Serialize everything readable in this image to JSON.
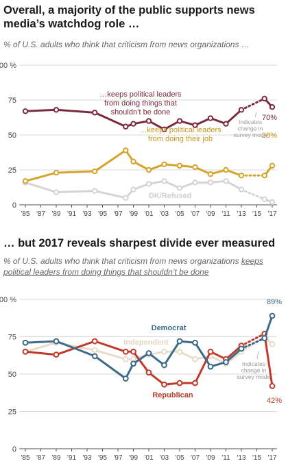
{
  "chart_data": [
    {
      "type": "line",
      "title": "Overall, a majority of the public supports news media’s watchdog role …",
      "subtitle": "% of U.S. adults who think that criticism from news organizations …",
      "ylim": [
        0,
        100
      ],
      "y_ticks": [
        "0",
        "25",
        "50",
        "75",
        "100 %"
      ],
      "x_ticks": [
        "'85",
        "'87",
        "'89",
        "'91",
        "'93",
        "'95",
        "'97",
        "'99",
        "'01",
        "'03",
        "'05",
        "'07",
        "'09",
        "'11",
        "'13",
        "'15",
        "'17"
      ],
      "mode_change_note": "Indicates change in survey mode",
      "series": [
        {
          "name": "…keeps political leaders from doing things that shouldn’t be done",
          "color": "#7b2b3c",
          "x": [
            1985,
            1989,
            1994,
            1998,
            1999,
            2001,
            2003,
            2005,
            2007,
            2009,
            2011,
            2013
          ],
          "values": [
            67,
            68,
            66,
            56,
            58,
            60,
            54,
            60,
            57,
            62,
            58,
            68
          ],
          "x_after_mode_change": [
            2016,
            2017
          ],
          "values_after_mode_change": [
            76,
            70
          ],
          "end_label": "70%"
        },
        {
          "name": "…keeps political leaders from doing their job",
          "color": "#d4a42a",
          "x": [
            1985,
            1989,
            1994,
            1998,
            1999,
            2001,
            2003,
            2005,
            2007,
            2009,
            2011,
            2013
          ],
          "values": [
            17,
            23,
            24,
            39,
            31,
            25,
            29,
            28,
            27,
            22,
            25,
            21
          ],
          "x_after_mode_change": [
            2016,
            2017
          ],
          "values_after_mode_change": [
            21,
            28
          ],
          "end_label": "28%"
        },
        {
          "name": "DK/Refused",
          "color": "#d4d4d4",
          "x": [
            1985,
            1989,
            1994,
            1998,
            1999,
            2001,
            2003,
            2005,
            2007,
            2009,
            2011,
            2013
          ],
          "values": [
            16,
            9,
            10,
            5,
            11,
            15,
            17,
            12,
            16,
            16,
            17,
            11
          ],
          "x_after_mode_change": [
            2016,
            2017
          ],
          "values_after_mode_change": [
            4,
            2
          ]
        }
      ]
    },
    {
      "type": "line",
      "title": "… but 2017 reveals sharpest divide ever measured",
      "subtitle_parts": [
        "% of U.S. adults who think that criticism from news organizations ",
        "keeps political leaders from doing things that shouldn’t be done"
      ],
      "ylim": [
        0,
        100
      ],
      "y_ticks": [
        "0",
        "25",
        "50",
        "75",
        "100 %"
      ],
      "x_ticks": [
        "'85",
        "'87",
        "'89",
        "'91",
        "'93",
        "'95",
        "'97",
        "'99",
        "'01",
        "'03",
        "'05",
        "'07",
        "'09",
        "'11",
        "'13",
        "'15",
        "'17"
      ],
      "mode_change_note": "Indicates change in survey mode",
      "series": [
        {
          "name": "Independent",
          "color": "#e7dcc9",
          "x": [
            1985,
            1989,
            1994,
            1998,
            1999,
            2001,
            2003,
            2005,
            2007,
            2009,
            2011,
            2013
          ],
          "values": [
            65,
            71,
            66,
            60,
            60,
            63,
            65,
            65,
            60,
            62,
            57,
            65
          ],
          "x_after_mode_change": [
            2016,
            2017
          ],
          "values_after_mode_change": [
            75,
            70
          ]
        },
        {
          "name": "Democrat",
          "color": "#3b6a8a",
          "x": [
            1985,
            1989,
            1994,
            1998,
            1999,
            2001,
            2003,
            2005,
            2007,
            2009,
            2011,
            2013
          ],
          "values": [
            71,
            72,
            62,
            47,
            57,
            64,
            56,
            72,
            71,
            55,
            58,
            67
          ],
          "x_after_mode_change": [
            2016,
            2017
          ],
          "values_after_mode_change": [
            74,
            89
          ],
          "end_label": "89%"
        },
        {
          "name": "Republican",
          "color": "#bf3a2b",
          "x": [
            1985,
            1989,
            1994,
            1998,
            1999,
            2001,
            2003,
            2005,
            2007,
            2009,
            2011,
            2013
          ],
          "values": [
            65,
            63,
            72,
            65,
            65,
            51,
            43,
            44,
            44,
            65,
            60,
            69
          ],
          "x_after_mode_change": [
            2016,
            2017
          ],
          "values_after_mode_change": [
            77,
            42
          ],
          "end_label": "42%"
        }
      ]
    }
  ]
}
